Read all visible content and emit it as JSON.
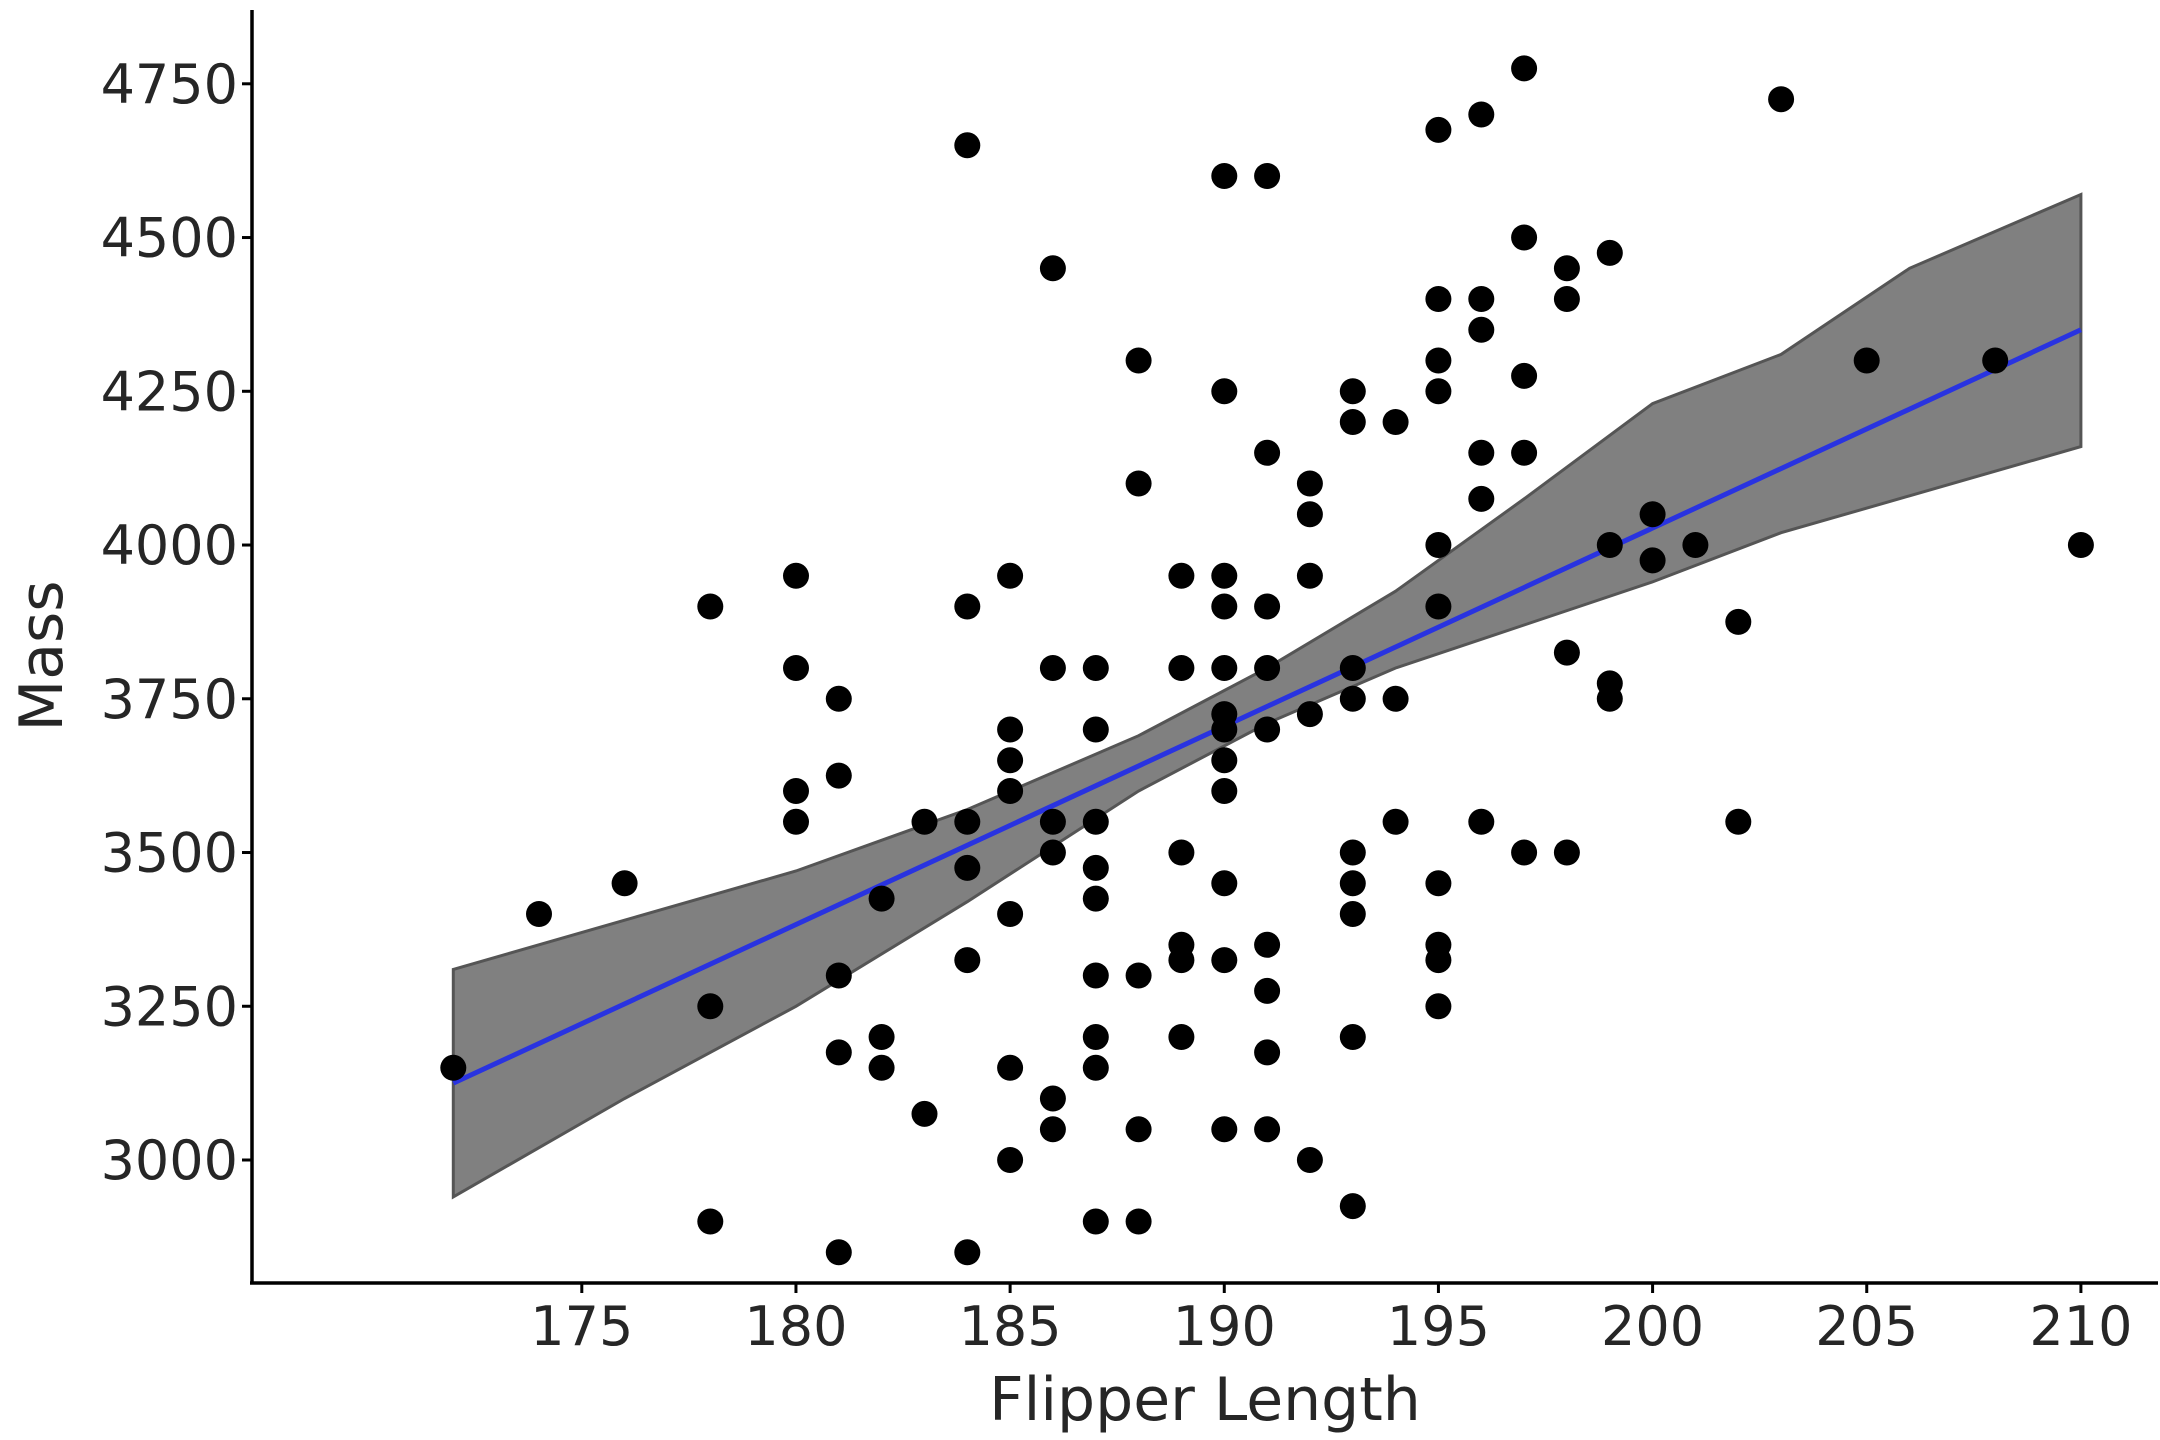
{
  "chart_data": {
    "type": "scatter",
    "title": "",
    "xlabel": "Flipper Length",
    "ylabel": "Mass",
    "xlim": [
      167.3,
      211.8
    ],
    "ylim": [
      2800,
      4870
    ],
    "xticks": [
      175,
      180,
      185,
      190,
      195,
      200,
      205,
      210
    ],
    "yticks": [
      3000,
      3250,
      3500,
      3750,
      4000,
      4250,
      4500,
      4750
    ],
    "grid": false,
    "colors": {
      "points": "#000000",
      "fit_line": "#2933e0",
      "band": "#808080"
    },
    "points": [
      [
        172,
        3150
      ],
      [
        174,
        3400
      ],
      [
        176,
        3450
      ],
      [
        178,
        3900
      ],
      [
        178,
        3250
      ],
      [
        178,
        2900
      ],
      [
        180,
        3950
      ],
      [
        180,
        3800
      ],
      [
        180,
        3600
      ],
      [
        180,
        3550
      ],
      [
        181,
        3750
      ],
      [
        181,
        3625
      ],
      [
        181,
        3300
      ],
      [
        181,
        3175
      ],
      [
        181,
        2850
      ],
      [
        182,
        3425
      ],
      [
        182,
        3200
      ],
      [
        182,
        3150
      ],
      [
        183,
        3550
      ],
      [
        183,
        3075
      ],
      [
        184,
        4650
      ],
      [
        184,
        3900
      ],
      [
        184,
        3550
      ],
      [
        184,
        3475
      ],
      [
        184,
        3325
      ],
      [
        184,
        2850
      ],
      [
        185,
        3950
      ],
      [
        185,
        3700
      ],
      [
        185,
        3650
      ],
      [
        185,
        3600
      ],
      [
        185,
        3400
      ],
      [
        185,
        3150
      ],
      [
        185,
        3000
      ],
      [
        186,
        4450
      ],
      [
        186,
        3800
      ],
      [
        186,
        3550
      ],
      [
        186,
        3500
      ],
      [
        186,
        3100
      ],
      [
        186,
        3050
      ],
      [
        187,
        3800
      ],
      [
        187,
        3700
      ],
      [
        187,
        3550
      ],
      [
        187,
        3475
      ],
      [
        187,
        3425
      ],
      [
        187,
        3300
      ],
      [
        187,
        3200
      ],
      [
        187,
        3150
      ],
      [
        187,
        2900
      ],
      [
        188,
        4300
      ],
      [
        188,
        4100
      ],
      [
        188,
        3300
      ],
      [
        188,
        3050
      ],
      [
        188,
        2900
      ],
      [
        189,
        3950
      ],
      [
        189,
        3800
      ],
      [
        189,
        3500
      ],
      [
        189,
        3350
      ],
      [
        189,
        3325
      ],
      [
        189,
        3200
      ],
      [
        190,
        4600
      ],
      [
        190,
        4250
      ],
      [
        190,
        3950
      ],
      [
        190,
        3900
      ],
      [
        190,
        3800
      ],
      [
        190,
        3725
      ],
      [
        190,
        3700
      ],
      [
        190,
        3650
      ],
      [
        190,
        3600
      ],
      [
        190,
        3450
      ],
      [
        190,
        3325
      ],
      [
        190,
        3050
      ],
      [
        191,
        4600
      ],
      [
        191,
        4150
      ],
      [
        191,
        3900
      ],
      [
        191,
        3800
      ],
      [
        191,
        3700
      ],
      [
        191,
        3350
      ],
      [
        191,
        3275
      ],
      [
        191,
        3175
      ],
      [
        191,
        3050
      ],
      [
        192,
        4100
      ],
      [
        192,
        4050
      ],
      [
        192,
        3950
      ],
      [
        192,
        3725
      ],
      [
        192,
        3000
      ],
      [
        193,
        4250
      ],
      [
        193,
        4200
      ],
      [
        193,
        3800
      ],
      [
        193,
        3750
      ],
      [
        193,
        3500
      ],
      [
        193,
        3450
      ],
      [
        193,
        3400
      ],
      [
        193,
        3200
      ],
      [
        193,
        2925
      ],
      [
        194,
        4200
      ],
      [
        194,
        3750
      ],
      [
        194,
        3550
      ],
      [
        195,
        4675
      ],
      [
        195,
        4400
      ],
      [
        195,
        4300
      ],
      [
        195,
        4250
      ],
      [
        195,
        4000
      ],
      [
        195,
        3900
      ],
      [
        195,
        3450
      ],
      [
        195,
        3350
      ],
      [
        195,
        3325
      ],
      [
        195,
        3250
      ],
      [
        196,
        4700
      ],
      [
        196,
        4400
      ],
      [
        196,
        4350
      ],
      [
        196,
        4150
      ],
      [
        196,
        4075
      ],
      [
        196,
        3550
      ],
      [
        197,
        4775
      ],
      [
        197,
        4500
      ],
      [
        197,
        4275
      ],
      [
        197,
        4150
      ],
      [
        197,
        3500
      ],
      [
        198,
        4450
      ],
      [
        198,
        4400
      ],
      [
        198,
        3825
      ],
      [
        198,
        3500
      ],
      [
        199,
        4475
      ],
      [
        199,
        4000
      ],
      [
        199,
        3775
      ],
      [
        199,
        3750
      ],
      [
        200,
        4050
      ],
      [
        200,
        3975
      ],
      [
        201,
        4000
      ],
      [
        202,
        3875
      ],
      [
        202,
        3550
      ],
      [
        203,
        4725
      ],
      [
        205,
        4300
      ],
      [
        208,
        4300
      ],
      [
        210,
        4000
      ]
    ],
    "fit_line": [
      [
        172,
        3125
      ],
      [
        210,
        4350
      ]
    ],
    "band": {
      "x": [
        172,
        176,
        180,
        184,
        188,
        191,
        194,
        197,
        200,
        203,
        206,
        210
      ],
      "upper": [
        3310,
        3390,
        3470,
        3570,
        3690,
        3800,
        3925,
        4075,
        4230,
        4310,
        4450,
        4570
      ],
      "lower": [
        2940,
        3100,
        3250,
        3420,
        3600,
        3710,
        3800,
        3870,
        3940,
        4020,
        4080,
        4160
      ]
    }
  }
}
